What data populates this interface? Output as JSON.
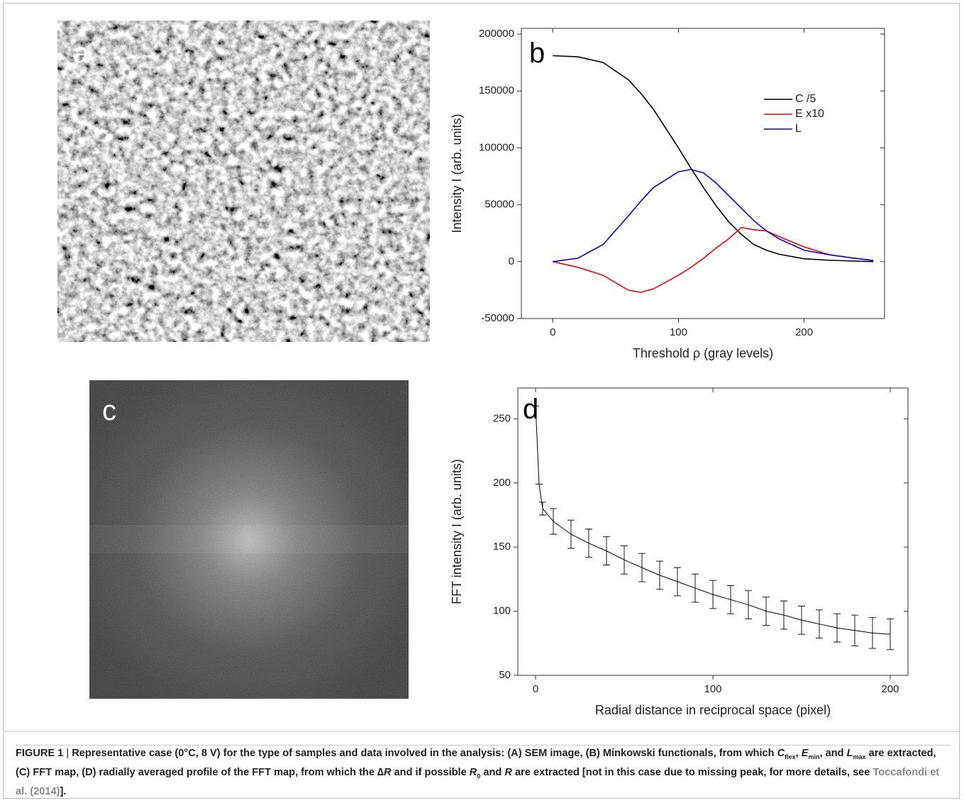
{
  "panels": [
    "a",
    "b",
    "c",
    "d"
  ],
  "chart_data": [
    {
      "type": "line",
      "xlabel": "Threshold ρ (gray levels)",
      "ylabel": "Intensity I (arb. units)",
      "x": [
        0,
        20,
        40,
        60,
        70,
        80,
        100,
        110,
        120,
        130,
        140,
        150,
        160,
        170,
        180,
        200,
        220,
        240,
        255
      ],
      "series": [
        {
          "name": "C /5",
          "color": "#000000",
          "values": [
            181000,
            180000,
            175000,
            160000,
            148000,
            134000,
            100000,
            82000,
            65000,
            49000,
            35000,
            24000,
            15000,
            10000,
            6500,
            2500,
            1200,
            500,
            0
          ]
        },
        {
          "name": "E x10",
          "color": "#ff0000",
          "values": [
            0,
            -5000,
            -12000,
            -25000,
            -27000,
            -24000,
            -12000,
            -5000,
            3000,
            12000,
            20000,
            30000,
            28000,
            27000,
            22000,
            13000,
            6000,
            3000,
            1000
          ]
        },
        {
          "name": "L",
          "color": "#0000ff",
          "values": [
            0,
            3000,
            15000,
            40000,
            53000,
            65000,
            79000,
            81000,
            78000,
            69000,
            58000,
            47000,
            36000,
            27000,
            20000,
            10000,
            6000,
            3000,
            1000
          ]
        }
      ],
      "xlim": [
        -25,
        264
      ],
      "xticks": [
        0,
        100,
        200
      ],
      "ylim": [
        -50000,
        205000
      ],
      "yticks": [
        -50000,
        0,
        50000,
        100000,
        150000,
        200000
      ],
      "legend": "upper right"
    },
    {
      "type": "errorbar",
      "xlabel": "Radial distance in reciprocal space  (pixel)",
      "ylabel": "FFT intensity I (arb. units)",
      "x": [
        0,
        2,
        4,
        10,
        20,
        30,
        40,
        50,
        60,
        70,
        80,
        90,
        100,
        110,
        120,
        130,
        140,
        150,
        160,
        170,
        180,
        190,
        200
      ],
      "series": [
        {
          "color": "#000000",
          "values": [
            260,
            199,
            180,
            170,
            160,
            153,
            147,
            140,
            134,
            128,
            123,
            118,
            113,
            109,
            105,
            100,
            97,
            93,
            90,
            87,
            85,
            83,
            82
          ],
          "errors": [
            0,
            0,
            5,
            10,
            11,
            11,
            11,
            11,
            11,
            11,
            11,
            11,
            11,
            11,
            11,
            11,
            11,
            11,
            11,
            11,
            12,
            12,
            12
          ]
        }
      ],
      "xlim": [
        -10,
        210
      ],
      "xticks": [
        0,
        100,
        200
      ],
      "ylim": [
        50,
        274
      ],
      "yticks": [
        50,
        100,
        150,
        200,
        250
      ]
    }
  ],
  "caption": [
    "FIGURE 1",
    " | ",
    "Representative case (0°C, 8 V) for the type of samples and data involved in the analysis: (A) SEM image, (B) Minkowski functionals, from which ",
    "C",
    "flex",
    ", ",
    "E",
    "min",
    ", and ",
    "L",
    "max",
    " are extracted, (C) FFT map, (D) radially averaged profile of the FFT map, from which the ∆",
    "R",
    " and if possible ",
    "R",
    "0",
    " and ",
    "R",
    " are extracted [not in this case due to missing peak, for more details, see ",
    "Toccafondi et al. (2014)",
    "]."
  ]
}
